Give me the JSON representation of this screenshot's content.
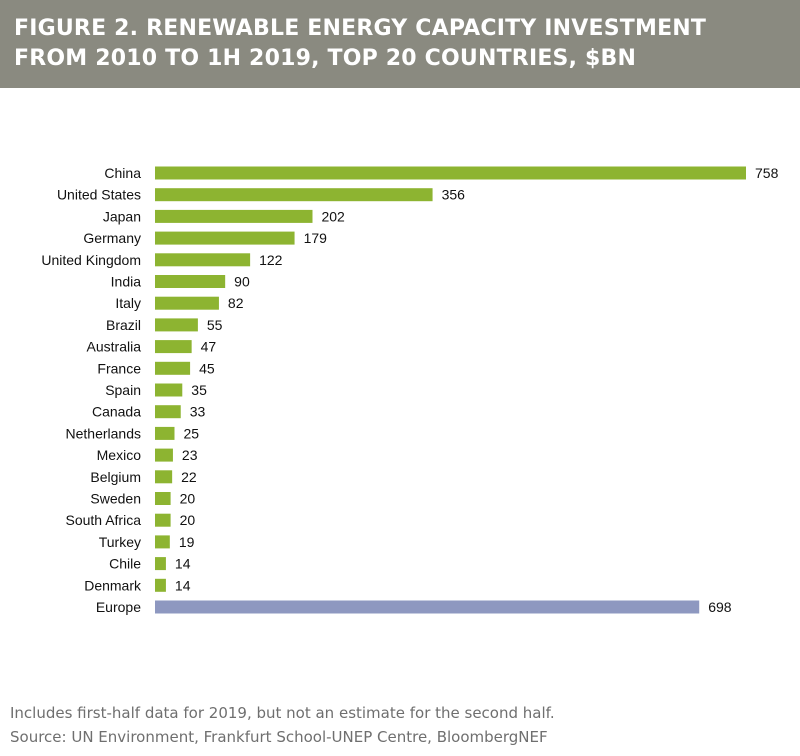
{
  "header": {
    "title": "FIGURE 2. RENEWABLE ENERGY CAPACITY INVESTMENT FROM 2010 TO 1H 2019, TOP 20 COUNTRIES, $BN"
  },
  "chart_data": {
    "type": "bar",
    "orientation": "horizontal",
    "title": "FIGURE 2. RENEWABLE ENERGY CAPACITY INVESTMENT FROM 2010 TO 1H 2019, TOP 20 COUNTRIES, $BN",
    "xlabel": "",
    "ylabel": "",
    "xlim": [
      0,
      758
    ],
    "grid": false,
    "categories": [
      "China",
      "United States",
      "Japan",
      "Germany",
      "United Kingdom",
      "India",
      "Italy",
      "Brazil",
      "Australia",
      "France",
      "Spain",
      "Canada",
      "Netherlands",
      "Mexico",
      "Belgium",
      "Sweden",
      "South Africa",
      "Turkey",
      "Chile",
      "Denmark",
      "Europe"
    ],
    "values": [
      758,
      356,
      202,
      179,
      122,
      90,
      82,
      55,
      47,
      45,
      35,
      33,
      25,
      23,
      22,
      20,
      20,
      19,
      14,
      14,
      698
    ],
    "colors": {
      "country": "#8db431",
      "europe": "#8e98c0"
    }
  },
  "footnotes": {
    "note": "Includes first-half data for 2019, but not an estimate for the second half.",
    "source": "Source: UN Environment, Frankfurt School-UNEP Centre, BloombergNEF"
  }
}
